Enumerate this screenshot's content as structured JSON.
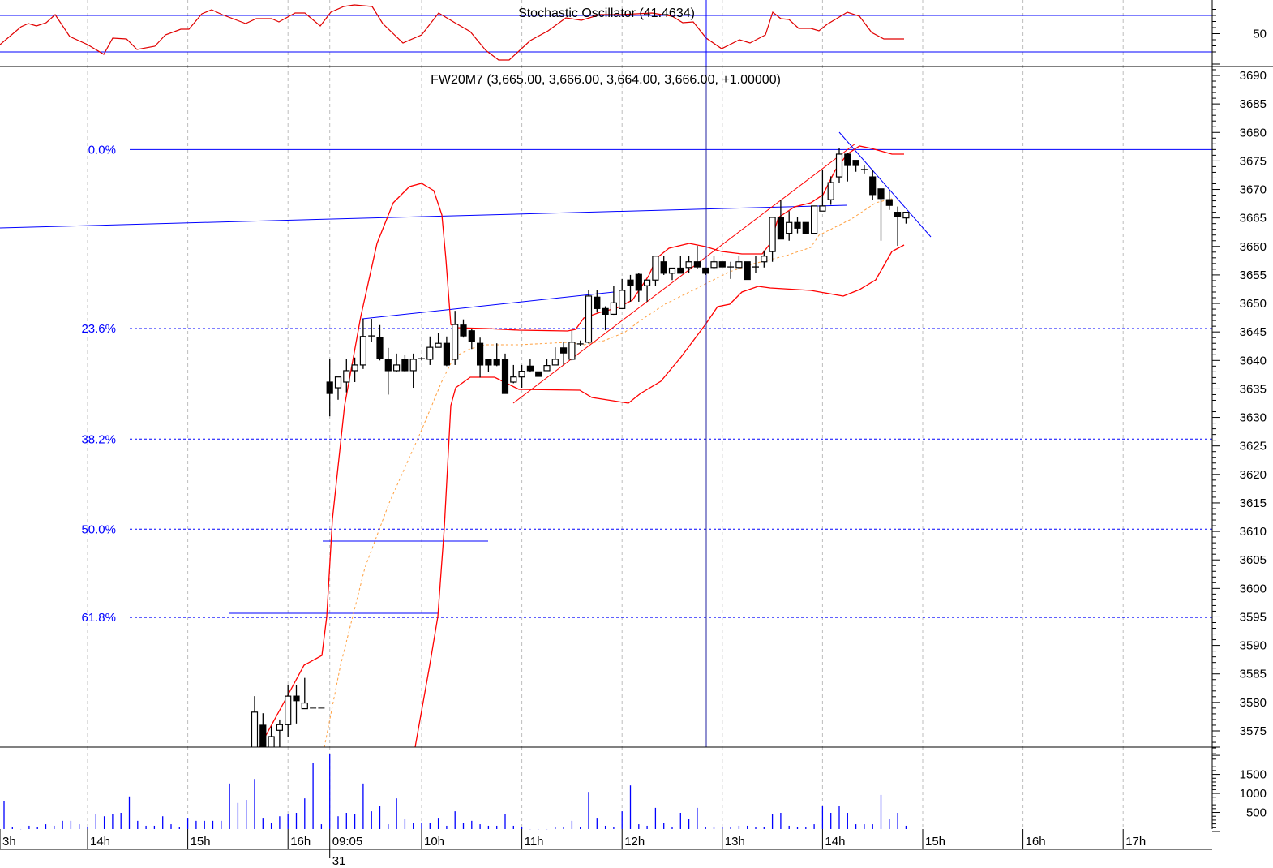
{
  "chart_data": {
    "type": "candlestick",
    "title": "FW20M7 (3,665.00, 3,666.00, 3,664.00, 3,666.00, +1.00000)",
    "stochastic": {
      "title": "Stochastic Oscillator (41.4634)",
      "tick_labels": [
        "50"
      ],
      "levels": [
        80,
        20
      ]
    },
    "price_axis": {
      "ylim": [
        3571,
        3691
      ],
      "tick_labels": [
        "3690",
        "3685",
        "3680",
        "3675",
        "3670",
        "3665",
        "3660",
        "3655",
        "3650",
        "3645",
        "3640",
        "3635",
        "3630",
        "3625",
        "3620",
        "3615",
        "3610",
        "3605",
        "3600",
        "3595",
        "3590",
        "3585",
        "3580",
        "3575"
      ]
    },
    "volume_axis": {
      "tick_labels": [
        "1500",
        "1000",
        "500"
      ]
    },
    "time_axis": {
      "tick_labels": [
        {
          "label": "3h",
          "session": 0,
          "t": "13:00"
        },
        {
          "label": "14h",
          "session": 0,
          "t": "14:00"
        },
        {
          "label": "15h",
          "session": 0,
          "t": "15:00"
        },
        {
          "label": "16h",
          "session": 0,
          "t": "16:00"
        },
        {
          "label": "09:05",
          "session": 1,
          "t": "09:05"
        },
        {
          "label": "10h",
          "session": 1,
          "t": "10:00"
        },
        {
          "label": "11h",
          "session": 1,
          "t": "11:00"
        },
        {
          "label": "12h",
          "session": 1,
          "t": "12:00"
        },
        {
          "label": "13h",
          "session": 1,
          "t": "13:00"
        },
        {
          "label": "14h",
          "session": 1,
          "t": "14:00"
        },
        {
          "label": "15h",
          "session": 1,
          "t": "15:00"
        },
        {
          "label": "16h",
          "session": 1,
          "t": "16:00"
        },
        {
          "label": "17h",
          "session": 1,
          "t": "17:00"
        }
      ],
      "date_label": "31"
    },
    "fibonacci": [
      {
        "label": "0.0%",
        "price": 3677.0
      },
      {
        "label": "23.6%",
        "price": 3645.6
      },
      {
        "label": "38.2%",
        "price": 3626.2
      },
      {
        "label": "50.0%",
        "price": 3610.4
      },
      {
        "label": "61.8%",
        "price": 3594.9
      }
    ],
    "grid": "vertical dashed",
    "colors": {
      "up": "#ffffff",
      "down": "#000000",
      "bands": "#ff0000",
      "ma": "#ffa040",
      "drawings": "#0000ff",
      "volume": "#0000ff",
      "crosshair": "#2020a0"
    },
    "sessions": [
      {
        "candles": [
          [
            "15:40",
            3570,
            3581.1,
            3568,
            3578.3
          ],
          [
            "15:45",
            3576,
            3578.1,
            3569,
            3571
          ],
          [
            "15:50",
            3571,
            3575.8,
            3569,
            3574
          ],
          [
            "15:55",
            3575.1,
            3577,
            3571,
            3576.1
          ],
          [
            "16:00",
            3576.1,
            3583.1,
            3574,
            3581.1
          ],
          [
            "16:05",
            3581.1,
            3583.1,
            3576.3,
            3580.3
          ],
          [
            "16:10",
            3578.9,
            3584.3,
            3578.9,
            3579.9
          ],
          [
            "16:15",
            3579,
            3579,
            3579,
            3579
          ],
          [
            "16:20",
            3579,
            3579,
            3579,
            3579
          ]
        ],
        "volume": [
          [
            "13:10",
            790
          ],
          [
            "13:15",
            110
          ],
          [
            "13:20",
            60
          ],
          [
            "13:25",
            150
          ],
          [
            "13:30",
            110
          ],
          [
            "13:35",
            190
          ],
          [
            "13:40",
            150
          ],
          [
            "13:45",
            280
          ],
          [
            "13:50",
            280
          ],
          [
            "13:55",
            190
          ],
          [
            "14:00",
            110
          ],
          [
            "14:05",
            450
          ],
          [
            "14:10",
            400
          ],
          [
            "14:15",
            450
          ],
          [
            "14:20",
            490
          ],
          [
            "14:25",
            920
          ],
          [
            "14:30",
            280
          ],
          [
            "14:35",
            150
          ],
          [
            "14:40",
            150
          ],
          [
            "14:45",
            400
          ],
          [
            "14:50",
            190
          ],
          [
            "14:55",
            110
          ],
          [
            "15:00",
            360
          ],
          [
            "15:05",
            280
          ],
          [
            "15:10",
            280
          ],
          [
            "15:15",
            280
          ],
          [
            "15:20",
            280
          ],
          [
            "15:25",
            1260
          ],
          [
            "15:30",
            750
          ],
          [
            "15:35",
            830
          ],
          [
            "15:40",
            1380
          ],
          [
            "15:45",
            360
          ],
          [
            "15:50",
            230
          ],
          [
            "15:55",
            400
          ],
          [
            "16:00",
            450
          ],
          [
            "16:05",
            490
          ],
          [
            "16:10",
            870
          ],
          [
            "16:15",
            1810
          ],
          [
            "16:20",
            190
          ]
        ]
      },
      {
        "candles": [
          [
            "09:05",
            3636.2,
            3640.2,
            3630.2,
            3634.2
          ],
          [
            "09:10",
            3635.2,
            3637.1,
            3633.1,
            3637.1
          ],
          [
            "09:15",
            3636.2,
            3640.2,
            3634.4,
            3638.2
          ],
          [
            "09:20",
            3638.2,
            3640.5,
            3636.2,
            3639.2
          ],
          [
            "09:25",
            3639.2,
            3647.3,
            3638.5,
            3644.2
          ],
          [
            "09:30",
            3644.3,
            3647.3,
            3643.2,
            3644.3
          ],
          [
            "09:35",
            3644,
            3646.2,
            3640,
            3640.3
          ],
          [
            "09:40",
            3640.2,
            3642.2,
            3634,
            3638.2
          ],
          [
            "09:45",
            3638.2,
            3641.2,
            3638,
            3639.2
          ],
          [
            "09:50",
            3640.2,
            3641,
            3638,
            3638.2
          ],
          [
            "09:55",
            3638.2,
            3641.2,
            3635.2,
            3640.2
          ],
          [
            "10:00",
            3640.3,
            3640.6,
            3640,
            3640.3
          ],
          [
            "10:05",
            3640.2,
            3644.2,
            3639.2,
            3642.3
          ],
          [
            "10:10",
            3642.3,
            3644.8,
            3642.3,
            3643
          ],
          [
            "10:15",
            3643,
            3644.2,
            3639,
            3639.2
          ],
          [
            "10:20",
            3640.2,
            3648.7,
            3639.2,
            3646.3
          ],
          [
            "10:25",
            3646.2,
            3647.2,
            3644,
            3644.3
          ],
          [
            "10:30",
            3645.2,
            3645.5,
            3642,
            3643.3
          ],
          [
            "10:35",
            3643,
            3644,
            3637,
            3639.2
          ],
          [
            "10:40",
            3640.2,
            3640.2,
            3638,
            3639.2
          ],
          [
            "10:45",
            3640.2,
            3643,
            3639,
            3639.2
          ],
          [
            "10:50",
            3640.2,
            3641.2,
            3634.2,
            3634.2
          ],
          [
            "10:55",
            3636.2,
            3639.2,
            3636,
            3637.1
          ],
          [
            "11:00",
            3637.1,
            3639.2,
            3635.2,
            3638.1
          ],
          [
            "11:05",
            3639,
            3640.2,
            3637.9,
            3638.2
          ],
          [
            "11:10",
            3638,
            3638,
            3637.2,
            3637.2
          ],
          [
            "11:15",
            3638.2,
            3640.2,
            3638.2,
            3639.1
          ],
          [
            "11:20",
            3639.2,
            3642.3,
            3639.2,
            3640.2
          ],
          [
            "11:25",
            3642.2,
            3643.3,
            3639.2,
            3641.3
          ],
          [
            "11:30",
            3640.2,
            3645.2,
            3640,
            3643.2
          ],
          [
            "11:35",
            3642.9,
            3643.5,
            3642.5,
            3642.9
          ],
          [
            "11:40",
            3643.2,
            3652.3,
            3643,
            3651.3
          ],
          [
            "11:45",
            3651.1,
            3652.3,
            3648.4,
            3649.1
          ],
          [
            "11:50",
            3649.1,
            3649.5,
            3645.3,
            3648.1
          ],
          [
            "11:55",
            3648.1,
            3653.1,
            3648,
            3650.1
          ],
          [
            "12:00",
            3649.1,
            3654.3,
            3649,
            3652.3
          ],
          [
            "12:05",
            3654.1,
            3655,
            3650.3,
            3653.1
          ],
          [
            "12:10",
            3655.1,
            3655.3,
            3650.3,
            3652.3
          ],
          [
            "12:15",
            3653.1,
            3654.2,
            3650.3,
            3654.1
          ],
          [
            "12:20",
            3654.1,
            3658.3,
            3653.1,
            3658.3
          ],
          [
            "12:25",
            3657.3,
            3658.3,
            3655,
            3655.3
          ],
          [
            "12:30",
            3655.3,
            3656.2,
            3654.1,
            3656.2
          ],
          [
            "12:35",
            3656.2,
            3658.3,
            3655.3,
            3655.3
          ],
          [
            "12:40",
            3656.3,
            3658.3,
            3655.3,
            3657.3
          ],
          [
            "12:45",
            3657.3,
            3660.1,
            3656,
            3656.4
          ],
          [
            "12:50",
            3656.2,
            3656.3,
            3655,
            3655.3
          ],
          [
            "12:55",
            3656.3,
            3658.3,
            3656,
            3657.3
          ],
          [
            "13:00",
            3657.3,
            3657.3,
            3656.4,
            3656.4
          ],
          [
            "13:05",
            3656.4,
            3657.3,
            3654.3,
            3656.4
          ],
          [
            "13:10",
            3656.3,
            3658.3,
            3656,
            3657.3
          ],
          [
            "13:15",
            3657.3,
            3657.3,
            3654.2,
            3654.2
          ],
          [
            "13:20",
            3656.4,
            3658.3,
            3655.3,
            3656.4
          ],
          [
            "13:25",
            3657.3,
            3659.3,
            3656.3,
            3658.3
          ],
          [
            "13:30",
            3659.1,
            3665.1,
            3657.3,
            3665.1
          ],
          [
            "13:35",
            3665.1,
            3668.1,
            3661.3,
            3661.3
          ],
          [
            "13:40",
            3662.3,
            3666.2,
            3661,
            3664.2
          ],
          [
            "13:45",
            3664.2,
            3665.1,
            3662.3,
            3663.2
          ],
          [
            "13:50",
            3664.2,
            3664.2,
            3662.3,
            3662.3
          ],
          [
            "13:55",
            3662.3,
            3667.1,
            3662.3,
            3667.1
          ],
          [
            "14:00",
            3666.2,
            3673.4,
            3666.2,
            3667.1
          ],
          [
            "14:05",
            3668.2,
            3672.3,
            3667.3,
            3671.2
          ],
          [
            "14:10",
            3672.2,
            3677.2,
            3671.1,
            3676.2
          ],
          [
            "14:15",
            3676.2,
            3676.4,
            3671.4,
            3674.2
          ],
          [
            "14:20",
            3675.1,
            3675.1,
            3673.1,
            3674.2
          ],
          [
            "14:25",
            3673.5,
            3674.2,
            3672.8,
            3673.5
          ],
          [
            "14:30",
            3672.2,
            3673.5,
            3668.2,
            3669.1
          ],
          [
            "14:35",
            3670.1,
            3670.1,
            3661,
            3668.4
          ],
          [
            "14:40",
            3668.2,
            3669.8,
            3666.4,
            3667.2
          ],
          [
            "14:45",
            3666,
            3667,
            3660.1,
            3665.2
          ],
          [
            "14:50",
            3665,
            3666,
            3664,
            3666
          ]
        ],
        "volume": [
          [
            "09:05",
            2040
          ],
          [
            "09:10",
            400
          ],
          [
            "09:15",
            490
          ],
          [
            "09:20",
            450
          ],
          [
            "09:25",
            1260
          ],
          [
            "09:30",
            530
          ],
          [
            "09:35",
            660
          ],
          [
            "09:40",
            190
          ],
          [
            "09:45",
            870
          ],
          [
            "09:50",
            320
          ],
          [
            "09:55",
            230
          ],
          [
            "10:00",
            230
          ],
          [
            "10:05",
            230
          ],
          [
            "10:10",
            360
          ],
          [
            "10:15",
            150
          ],
          [
            "10:20",
            530
          ],
          [
            "10:25",
            230
          ],
          [
            "10:30",
            280
          ],
          [
            "10:35",
            190
          ],
          [
            "10:40",
            150
          ],
          [
            "10:45",
            150
          ],
          [
            "10:50",
            450
          ],
          [
            "10:55",
            150
          ],
          [
            "11:00",
            110
          ],
          [
            "11:05",
            60
          ],
          [
            "11:10",
            60
          ],
          [
            "11:15",
            60
          ],
          [
            "11:20",
            110
          ],
          [
            "11:25",
            110
          ],
          [
            "11:30",
            280
          ],
          [
            "11:35",
            110
          ],
          [
            "11:40",
            1040
          ],
          [
            "11:45",
            360
          ],
          [
            "11:50",
            150
          ],
          [
            "11:55",
            110
          ],
          [
            "12:00",
            530
          ],
          [
            "12:05",
            1210
          ],
          [
            "12:10",
            190
          ],
          [
            "12:15",
            150
          ],
          [
            "12:20",
            620
          ],
          [
            "12:25",
            230
          ],
          [
            "12:30",
            110
          ],
          [
            "12:35",
            490
          ],
          [
            "12:40",
            320
          ],
          [
            "12:45",
            620
          ],
          [
            "12:50",
            110
          ],
          [
            "12:55",
            110
          ],
          [
            "13:00",
            110
          ],
          [
            "13:05",
            110
          ],
          [
            "13:10",
            150
          ],
          [
            "13:15",
            150
          ],
          [
            "13:20",
            110
          ],
          [
            "13:25",
            110
          ],
          [
            "13:30",
            450
          ],
          [
            "13:35",
            490
          ],
          [
            "13:40",
            150
          ],
          [
            "13:45",
            110
          ],
          [
            "13:50",
            110
          ],
          [
            "13:55",
            190
          ],
          [
            "14:00",
            660
          ],
          [
            "14:05",
            490
          ],
          [
            "14:10",
            660
          ],
          [
            "14:15",
            490
          ],
          [
            "14:20",
            190
          ],
          [
            "14:25",
            190
          ],
          [
            "14:30",
            190
          ],
          [
            "14:35",
            960
          ],
          [
            "14:40",
            320
          ],
          [
            "14:45",
            490
          ],
          [
            "14:50",
            150
          ]
        ]
      }
    ]
  }
}
